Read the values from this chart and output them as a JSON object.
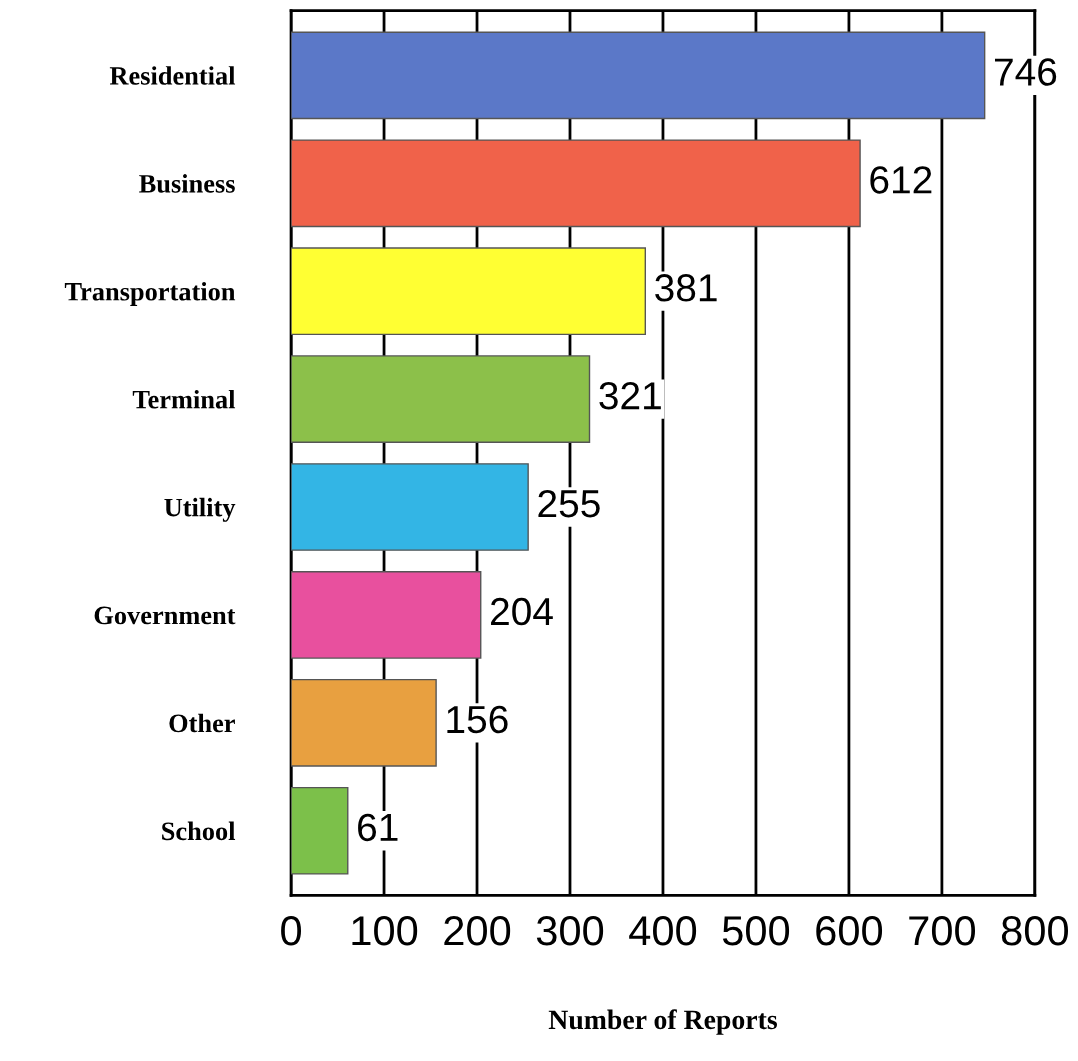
{
  "chart_data": {
    "type": "bar",
    "orientation": "horizontal",
    "xlabel": "Number of Reports",
    "categories": [
      "Residential",
      "Business",
      "Transportation",
      "Terminal",
      "Utility",
      "Government",
      "Other",
      "School"
    ],
    "values": [
      746,
      612,
      381,
      321,
      255,
      204,
      156,
      61
    ],
    "colors": [
      "#5b78c8",
      "#f0624a",
      "#ffff33",
      "#8cc04a",
      "#33b5e5",
      "#e8509e",
      "#e8a040",
      "#7cc04a"
    ],
    "xlim": [
      0,
      800
    ],
    "xticks": [
      0,
      100,
      200,
      300,
      400,
      500,
      600,
      700,
      800
    ],
    "grid": "x",
    "data_labels": true
  }
}
